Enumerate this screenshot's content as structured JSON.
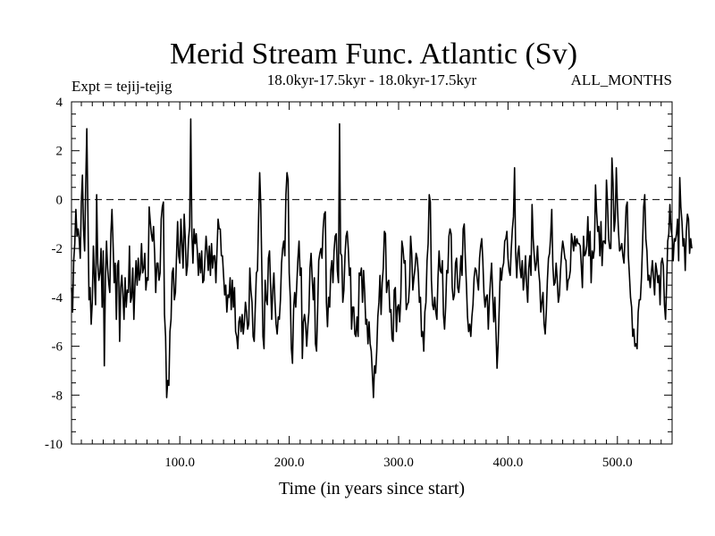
{
  "chart_data": {
    "type": "line",
    "title": "Merid Stream Func. Atlantic (Sv)",
    "subtitle": "18.0kyr-17.5kyr - 18.0kyr-17.5kyr",
    "left_label": "Expt = tejij-tejig",
    "right_label": "ALL_MONTHS",
    "xlabel": "Time (in years since start)",
    "ylabel": "",
    "xlim": [
      1,
      550
    ],
    "ylim": [
      -10,
      4
    ],
    "x_ticks": [
      100,
      200,
      300,
      400,
      500
    ],
    "x_tick_labels": [
      "100.0",
      "200.0",
      "300.0",
      "400.0",
      "500.0"
    ],
    "y_ticks": [
      -10,
      -8,
      -6,
      -4,
      -2,
      0,
      2,
      4
    ],
    "y_tick_labels": [
      "-10",
      "-8",
      "-6",
      "-4",
      "-2",
      "0",
      "2",
      "4"
    ],
    "reference_line": {
      "y": 0,
      "style": "dashed"
    },
    "series": [
      {
        "name": "Merid Stream Func. Atlantic",
        "x_start": 1,
        "x_step": 1,
        "values": [
          -3.6,
          -4.6,
          -2.5,
          -1.8,
          -0.4,
          -1.5,
          -1.2,
          -1.6,
          -2.4,
          -0.1,
          1.0,
          -1.2,
          -2.1,
          0.6,
          2.9,
          -0.5,
          -4.1,
          -3.6,
          -5.1,
          -4.2,
          -1.9,
          -3.2,
          -4.3,
          0.2,
          -2.6,
          -3.3,
          -3.0,
          -2.0,
          -4.4,
          -2.1,
          -6.8,
          -3.3,
          -1.7,
          -2.8,
          -3.4,
          -3.8,
          -1.4,
          -0.4,
          -1.8,
          -3.4,
          -2.6,
          -4.9,
          -2.7,
          -2.5,
          -5.8,
          -3.6,
          -3.1,
          -3.9,
          -4.9,
          -3.2,
          -4.4,
          -3.7,
          -3.8,
          -1.9,
          -4.2,
          -4.0,
          -2.8,
          -4.9,
          -3.5,
          -2.5,
          -3.5,
          -2.4,
          -3.3,
          -3.0,
          -1.8,
          -3.0,
          -2.8,
          -2.2,
          -3.7,
          -3.2,
          -3.3,
          -0.3,
          -0.9,
          -1.4,
          -1.7,
          -1.1,
          -2.2,
          -3.8,
          -2.6,
          -2.6,
          -3.3,
          -3.0,
          -0.8,
          -0.3,
          -0.1,
          -4.7,
          -5.6,
          -8.1,
          -7.4,
          -7.6,
          -5.4,
          -4.9,
          -3.0,
          -2.8,
          -4.1,
          -3.8,
          -2.3,
          -0.9,
          -2.3,
          -2.6,
          -0.8,
          -1.8,
          -2.8,
          -0.6,
          -1.6,
          -3.1,
          -2.7,
          -1.6,
          -1.1,
          3.3,
          -1.3,
          -2.6,
          -1.2,
          -1.8,
          -1.4,
          -2.1,
          -3.1,
          -2.2,
          -3.0,
          -2.1,
          -3.4,
          -3.3,
          -2.4,
          -1.5,
          -2.1,
          -2.9,
          -1.9,
          -3.1,
          -1.8,
          -2.8,
          -2.3,
          -2.3,
          -3.4,
          -2.1,
          -0.8,
          -1.2,
          -1.2,
          -2.3,
          -2.3,
          -3.1,
          -3.9,
          -3.5,
          -4.6,
          -3.9,
          -4.0,
          -3.2,
          -4.5,
          -3.3,
          -4.4,
          -3.6,
          -5.4,
          -5.6,
          -6.1,
          -5.0,
          -4.8,
          -5.4,
          -4.7,
          -5.5,
          -5.0,
          -4.2,
          -4.6,
          -5.3,
          -5.1,
          -2.8,
          -3.7,
          -4.2,
          -5.6,
          -5.8,
          -4.4,
          -3.0,
          -2.9,
          -0.8,
          1.1,
          -0.2,
          -2.9,
          -5.6,
          -6.1,
          -3.3,
          -4.1,
          -4.3,
          -2.4,
          -2.1,
          -3.5,
          -4.9,
          -3.7,
          -3.0,
          -4.2,
          -5.1,
          -5.5,
          -4.8,
          -4.9,
          -4.1,
          -2.6,
          -2.0,
          -1.7,
          -2.3,
          0.2,
          1.1,
          0.8,
          -3.0,
          -4.0,
          -6.1,
          -6.7,
          -4.5,
          -3.8,
          -4.4,
          -3.4,
          -2.4,
          -1.7,
          -3.1,
          -2.8,
          -6.5,
          -5.0,
          -4.7,
          -5.1,
          -6.0,
          -5.2,
          -4.6,
          -2.8,
          -2.2,
          -3.2,
          -4.1,
          -3.2,
          -5.9,
          -6.2,
          -4.5,
          -2.5,
          -2.2,
          -2.0,
          -2.4,
          -1.2,
          -0.6,
          -0.5,
          -4.2,
          -5.2,
          -4.0,
          -4.4,
          -2.9,
          -2.5,
          -3.4,
          -2.1,
          -1.5,
          -1.4,
          -2.9,
          -3.4,
          3.1,
          -2.2,
          -2.3,
          -4.2,
          -3.7,
          -2.3,
          -1.5,
          -1.3,
          -2.0,
          -3.1,
          -2.8,
          -5.3,
          -4.4,
          -4.4,
          -5.5,
          -5.6,
          -4.8,
          -5.6,
          -3.0,
          -3.1,
          -2.8,
          -4.2,
          -2.9,
          -3.8,
          -5.1,
          -4.9,
          -5.9,
          -5.0,
          -5.9,
          -6.2,
          -7.1,
          -8.1,
          -6.8,
          -7.1,
          -6.2,
          -4.8,
          -4.2,
          -3.1,
          -4.7,
          -3.4,
          -2.8,
          -1.3,
          -1.4,
          -3.8,
          -3.4,
          -3.3,
          -4.6,
          -4.5,
          -5.7,
          -5.8,
          -3.7,
          -3.6,
          -5.4,
          -4.4,
          -4.3,
          -5.0,
          -4.0,
          -1.7,
          -2.0,
          -2.6,
          -2.5,
          -4.5,
          -4.3,
          -4.2,
          -3.5,
          -1.5,
          -2.2,
          -3.7,
          -3.2,
          -2.8,
          -2.2,
          -2.4,
          -3.0,
          -4.2,
          -4.0,
          -5.6,
          -5.4,
          -6.2,
          -4.6,
          -4.2,
          -2.5,
          -1.8,
          0.2,
          -0.1,
          -3.3,
          -4.3,
          -4.5,
          -4.0,
          -4.6,
          -4.9,
          -3.2,
          -2.1,
          -2.9,
          -3.0,
          -2.5,
          -4.7,
          -5.3,
          -4.4,
          -2.9,
          -3.0,
          -1.5,
          -1.2,
          -1.4,
          -3.6,
          -4.1,
          -3.9,
          -2.6,
          -2.4,
          -3.6,
          -3.8,
          -3.2,
          -2.3,
          -3.1,
          -1.2,
          -1.0,
          -2.4,
          -3.5,
          -4.8,
          -5.4,
          -5.1,
          -5.6,
          -4.8,
          -4.3,
          -3.2,
          -2.8,
          -2.9,
          -3.3,
          -3.7,
          -2.4,
          -1.9,
          -1.6,
          -2.5,
          -3.8,
          -4.4,
          -4.0,
          -3.9,
          -5.3,
          -4.1,
          -3.3,
          -2.6,
          -3.9,
          -5.0,
          -4.0,
          -5.4,
          -6.9,
          -5.9,
          -4.4,
          -2.8,
          -3.3,
          -2.8,
          -2.6,
          -1.7,
          -1.6,
          -1.3,
          -2.4,
          -2.9,
          -3.1,
          -2.0,
          -1.2,
          -0.7,
          1.3,
          -2.2,
          -3.2,
          -2.2,
          -1.9,
          -2.8,
          -3.2,
          -2.5,
          -3.7,
          -3.2,
          -2.3,
          -3.5,
          -4.2,
          -2.8,
          -2.3,
          -3.1,
          -0.2,
          -1.6,
          -2.3,
          -2.9,
          -2.6,
          -1.9,
          -2.9,
          -3.4,
          -4.6,
          -4.2,
          -3.8,
          -5.1,
          -5.5,
          -4.6,
          -3.3,
          -2.4,
          -2.2,
          -1.5,
          -0.4,
          -2.7,
          -3.5,
          -3.4,
          -2.6,
          -3.3,
          -4.2,
          -3.9,
          -2.9,
          -2.2,
          -1.7,
          -2.0,
          -2.4,
          -2.5,
          -3.7,
          -3.3,
          -3.2,
          -2.9,
          -1.4,
          -1.7,
          -2.1,
          -1.5,
          -1.9,
          -1.6,
          -1.8,
          -1.8,
          -1.9,
          -2.7,
          -3.6,
          -1.5,
          -2.3,
          -2.2,
          -1.9,
          -0.7,
          -2.3,
          -1.3,
          -3.4,
          -2.1,
          -2.4,
          -2.0,
          0.6,
          -0.5,
          -1.3,
          -1.1,
          -2.3,
          -0.9,
          -2.7,
          -1.7,
          -1.7,
          -1.8,
          0.8,
          -0.2,
          -1.6,
          -2.0,
          -2.0,
          1.7,
          0.7,
          -1.3,
          -0.8,
          1.3,
          -0.2,
          -1.3,
          -2.1,
          -2.0,
          -1.8,
          -2.3,
          -2.6,
          -1.5,
          -0.3,
          -0.1,
          -2.3,
          -3.1,
          -4.0,
          -4.4,
          -5.6,
          -5.3,
          -6.0,
          -5.9,
          -6.1,
          -4.6,
          -4.1,
          -4.1,
          -3.2,
          -1.8,
          -0.3,
          0.2,
          -1.6,
          -2.1,
          -3.3,
          -3.1,
          -3.6,
          -3.0,
          -2.5,
          -3.2,
          -3.9,
          -2.6,
          -2.9,
          -3.4,
          -3.1,
          -4.3,
          -2.6,
          -2.4,
          -2.7,
          -4.3,
          -4.9,
          -3.5,
          -1.7,
          -1.4,
          -0.2,
          -1.2,
          -1.5,
          -2.5,
          -1.6,
          -1.7,
          -1.4,
          -0.8,
          -2.5,
          0.9,
          -0.3,
          -0.9,
          -1.9,
          -1.6,
          -2.9,
          -1.3,
          -0.6,
          -0.8,
          -2.2,
          -1.6,
          -2.0
        ]
      }
    ]
  }
}
